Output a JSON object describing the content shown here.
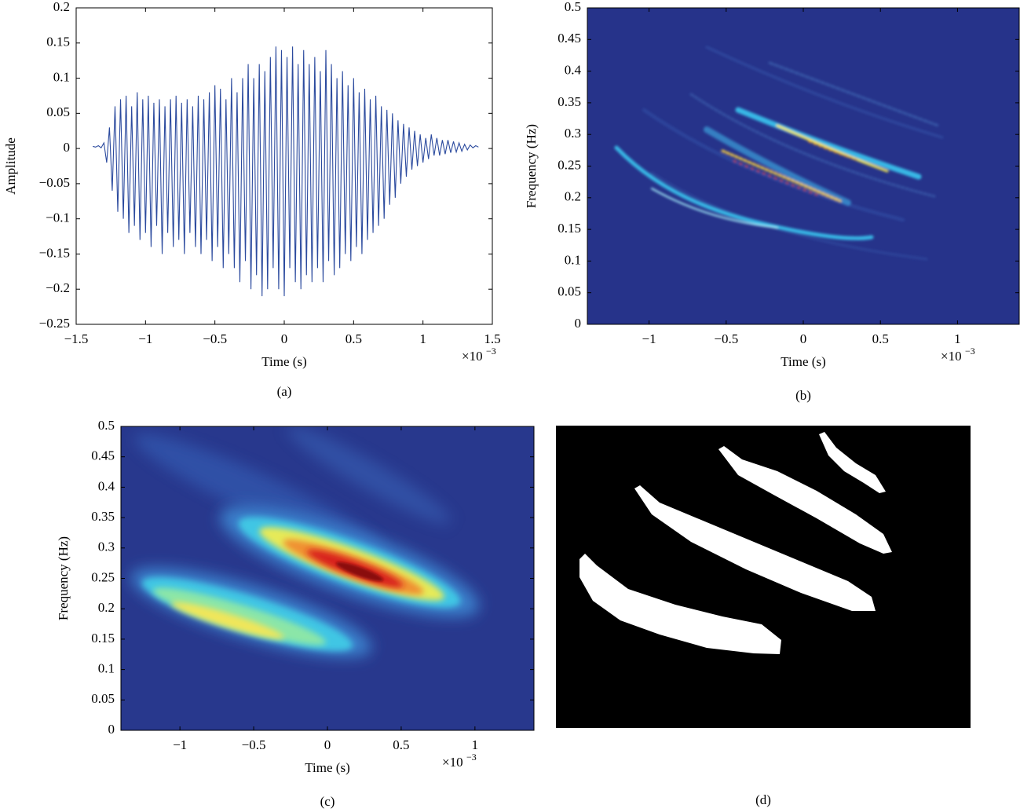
{
  "chart_data": [
    {
      "type": "line",
      "caption": "(a)",
      "xlabel": "Time (s)",
      "ylabel": "Amplitude",
      "x_multiplier": "×10",
      "x_multiplier_exponent": "−3",
      "color": "#2b4a9e",
      "xlim": [
        -1.5,
        1.5
      ],
      "ylim": [
        -0.25,
        0.2
      ],
      "xticks": [
        {
          "value": -1.5,
          "label": "−1.5"
        },
        {
          "value": -1,
          "label": "−1"
        },
        {
          "value": -0.5,
          "label": "−0.5"
        },
        0,
        0.5,
        1,
        1.5
      ],
      "yticks": [
        {
          "value": -0.25,
          "label": "−0.25"
        },
        {
          "value": -0.2,
          "label": "−0.2"
        },
        {
          "value": -0.15,
          "label": "−0.15"
        },
        {
          "value": -0.1,
          "label": "−0.1"
        },
        {
          "value": -0.05,
          "label": "−0.05"
        },
        0,
        0.05,
        0.1,
        0.15,
        0.2
      ],
      "x": [
        -1.38,
        -1.36,
        -1.34,
        -1.32,
        -1.3,
        -1.28,
        -1.26,
        -1.24,
        -1.22,
        -1.2,
        -1.18,
        -1.16,
        -1.14,
        -1.12,
        -1.1,
        -1.08,
        -1.06,
        -1.04,
        -1.02,
        -1.0,
        -0.98,
        -0.96,
        -0.94,
        -0.92,
        -0.9,
        -0.88,
        -0.86,
        -0.84,
        -0.82,
        -0.8,
        -0.78,
        -0.76,
        -0.74,
        -0.72,
        -0.7,
        -0.68,
        -0.66,
        -0.64,
        -0.62,
        -0.6,
        -0.58,
        -0.56,
        -0.54,
        -0.52,
        -0.5,
        -0.48,
        -0.46,
        -0.44,
        -0.42,
        -0.4,
        -0.38,
        -0.36,
        -0.34,
        -0.32,
        -0.3,
        -0.28,
        -0.26,
        -0.24,
        -0.22,
        -0.2,
        -0.18,
        -0.16,
        -0.14,
        -0.12,
        -0.1,
        -0.08,
        -0.06,
        -0.04,
        -0.02,
        0.0,
        0.02,
        0.04,
        0.06,
        0.08,
        0.1,
        0.12,
        0.14,
        0.16,
        0.18,
        0.2,
        0.22,
        0.24,
        0.26,
        0.28,
        0.3,
        0.32,
        0.34,
        0.36,
        0.38,
        0.4,
        0.42,
        0.44,
        0.46,
        0.48,
        0.5,
        0.52,
        0.54,
        0.56,
        0.58,
        0.6,
        0.62,
        0.64,
        0.66,
        0.68,
        0.7,
        0.72,
        0.74,
        0.76,
        0.78,
        0.8,
        0.82,
        0.84,
        0.86,
        0.88,
        0.9,
        0.92,
        0.94,
        0.96,
        0.98,
        1.0,
        1.02,
        1.04,
        1.06,
        1.08,
        1.1,
        1.12,
        1.14,
        1.16,
        1.18,
        1.2,
        1.22,
        1.24,
        1.26,
        1.28,
        1.3,
        1.32,
        1.34,
        1.36,
        1.38,
        1.4
      ],
      "values": [
        0.003,
        0.002,
        0.004,
        0.001,
        0.008,
        -0.02,
        0.03,
        -0.06,
        0.06,
        -0.09,
        0.07,
        -0.1,
        0.075,
        -0.12,
        0.06,
        -0.11,
        0.08,
        -0.13,
        0.07,
        -0.12,
        0.075,
        -0.14,
        0.065,
        -0.11,
        0.07,
        -0.15,
        0.06,
        -0.12,
        0.07,
        -0.14,
        0.075,
        -0.13,
        0.065,
        -0.15,
        0.07,
        -0.12,
        0.06,
        -0.14,
        0.075,
        -0.15,
        0.07,
        -0.13,
        0.08,
        -0.16,
        0.09,
        -0.14,
        0.085,
        -0.17,
        0.07,
        -0.15,
        0.1,
        -0.17,
        0.08,
        -0.19,
        0.1,
        -0.16,
        0.12,
        -0.2,
        0.1,
        -0.18,
        0.12,
        -0.21,
        0.11,
        -0.2,
        0.13,
        -0.17,
        0.145,
        -0.2,
        0.14,
        -0.21,
        0.13,
        -0.17,
        0.145,
        -0.19,
        0.12,
        -0.2,
        0.14,
        -0.18,
        0.12,
        -0.19,
        0.13,
        -0.17,
        0.11,
        -0.19,
        0.14,
        -0.16,
        0.12,
        -0.18,
        0.1,
        -0.17,
        0.11,
        -0.15,
        0.09,
        -0.16,
        0.1,
        -0.14,
        0.08,
        -0.15,
        0.085,
        -0.13,
        0.07,
        -0.12,
        0.075,
        -0.11,
        0.06,
        -0.1,
        0.055,
        -0.08,
        0.05,
        -0.07,
        0.04,
        -0.05,
        0.035,
        -0.04,
        0.03,
        -0.03,
        0.025,
        -0.025,
        0.02,
        -0.02,
        0.015,
        -0.015,
        0.02,
        -0.01,
        0.015,
        -0.01,
        0.012,
        -0.008,
        0.012,
        -0.006,
        0.01,
        -0.005,
        0.008,
        -0.004,
        0.006,
        -0.002,
        0.005,
        0.001,
        0.004,
        0.002
      ]
    },
    {
      "type": "heatmap",
      "caption": "(b)",
      "xlabel": "Time (s)",
      "ylabel": "Frequency (Hz)",
      "x_multiplier": "×10",
      "x_multiplier_exponent": "−3",
      "xlim": [
        -1.4,
        1.4
      ],
      "ylim": [
        0,
        0.5
      ],
      "xticks": [
        {
          "value": -1,
          "label": "−1"
        },
        {
          "value": -0.5,
          "label": "−0.5"
        },
        0,
        0.5,
        1
      ],
      "yticks": [
        0,
        0.05,
        0.1,
        0.15,
        0.2,
        0.25,
        0.3,
        0.35,
        0.4,
        0.45,
        0.5
      ]
    },
    {
      "type": "heatmap",
      "caption": "(c)",
      "xlabel": "Time (s)",
      "ylabel": "Frequency (Hz)",
      "x_multiplier": "×10",
      "x_multiplier_exponent": "−3",
      "xlim": [
        -1.4,
        1.4
      ],
      "ylim": [
        0,
        0.5
      ],
      "xticks": [
        {
          "value": -1,
          "label": "−1"
        },
        {
          "value": -0.5,
          "label": "−0.5"
        },
        0,
        0.5,
        1
      ],
      "yticks": [
        0,
        0.05,
        0.1,
        0.15,
        0.2,
        0.25,
        0.3,
        0.35,
        0.4,
        0.45,
        0.5
      ]
    },
    {
      "type": "image",
      "caption": "(d)"
    }
  ]
}
